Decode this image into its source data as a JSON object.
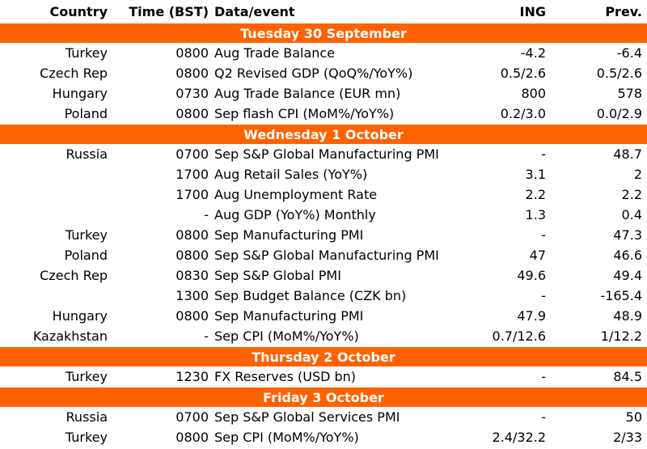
{
  "header": {
    "country": "Country",
    "time": "Time (BST)",
    "event": "Data/event",
    "ing": "ING",
    "prev": "Prev."
  },
  "days": [
    {
      "label": "Tuesday 30 September",
      "rows": [
        {
          "country": "Turkey",
          "time": "0800",
          "event": "Aug Trade Balance",
          "ing": "-4.2",
          "prev": "-6.4"
        },
        {
          "country": "Czech Rep",
          "time": "0800",
          "event": "Q2 Revised GDP (QoQ%/YoY%)",
          "ing": "0.5/2.6",
          "prev": "0.5/2.6"
        },
        {
          "country": "Hungary",
          "time": "0730",
          "event": "Aug Trade Balance (EUR mn)",
          "ing": "800",
          "prev": "578"
        },
        {
          "country": "Poland",
          "time": "0800",
          "event": "Sep flash CPI (MoM%/YoY%)",
          "ing": "0.2/3.0",
          "prev": "0.0/2.9"
        }
      ]
    },
    {
      "label": "Wednesday 1 October",
      "rows": [
        {
          "country": "Russia",
          "time": "0700",
          "event": "Sep S&P Global Manufacturing PMI",
          "ing": "-",
          "prev": "48.7"
        },
        {
          "country": "",
          "time": "1700",
          "event": "Aug Retail Sales (YoY%)",
          "ing": "3.1",
          "prev": "2"
        },
        {
          "country": "",
          "time": "1700",
          "event": "Aug Unemployment Rate",
          "ing": "2.2",
          "prev": "2.2"
        },
        {
          "country": "",
          "time": "-",
          "event": "Aug GDP (YoY%) Monthly",
          "ing": "1.3",
          "prev": "0.4"
        },
        {
          "country": "Turkey",
          "time": "0800",
          "event": "Sep Manufacturing PMI",
          "ing": "-",
          "prev": "47.3"
        },
        {
          "country": "Poland",
          "time": "0800",
          "event": "Sep S&P Global Manufacturing PMI",
          "ing": "47",
          "prev": "46.6"
        },
        {
          "country": "Czech Rep",
          "time": "0830",
          "event": "Sep S&P Global PMI",
          "ing": "49.6",
          "prev": "49.4"
        },
        {
          "country": "",
          "time": "1300",
          "event": "Sep Budget Balance (CZK bn)",
          "ing": "-",
          "prev": "-165.4"
        },
        {
          "country": "Hungary",
          "time": "0800",
          "event": "Sep Manufacturing PMI",
          "ing": "47.9",
          "prev": "48.9"
        },
        {
          "country": "Kazakhstan",
          "time": "-",
          "event": "Sep CPI (MoM%/YoY%)",
          "ing": "0.7/12.6",
          "prev": "1/12.2"
        }
      ]
    },
    {
      "label": "Thursday 2 October",
      "rows": [
        {
          "country": "Turkey",
          "time": "1230",
          "event": "FX Reserves (USD bn)",
          "ing": "-",
          "prev": "84.5"
        }
      ]
    },
    {
      "label": "Friday 3 October",
      "rows": [
        {
          "country": "Russia",
          "time": "0700",
          "event": "Sep S&P Global Services PMI",
          "ing": "-",
          "prev": "50"
        },
        {
          "country": "Turkey",
          "time": "0800",
          "event": "Sep CPI (MoM%/YoY%)",
          "ing": "2.4/32.2",
          "prev": "2/33"
        }
      ]
    }
  ],
  "colors": {
    "day_banner": "#FF6200",
    "day_text": "#FFFFFF"
  }
}
